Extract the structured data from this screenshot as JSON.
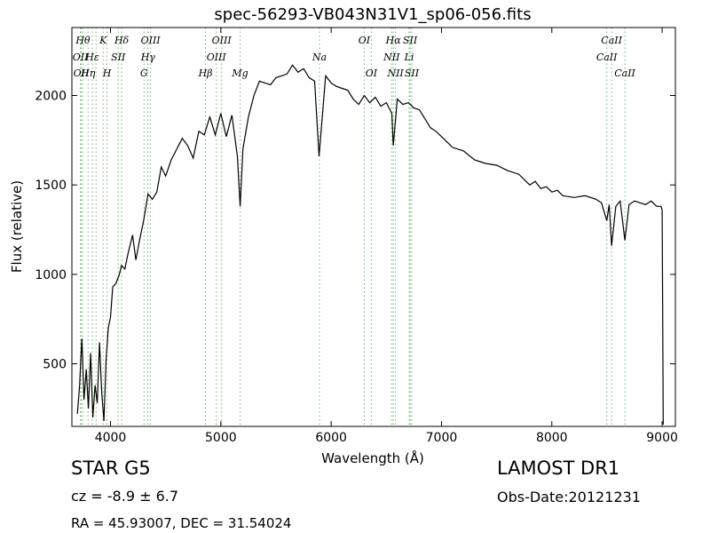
{
  "chart_data": {
    "type": "line",
    "title": "spec-56293-VB043N31V1_sp06-056.fits",
    "xlabel": "Wavelength (Å)",
    "ylabel": "Flux (relative)",
    "xlim": [
      3650,
      9120
    ],
    "ylim": [
      150,
      2380
    ],
    "xticks": [
      4000,
      5000,
      6000,
      7000,
      8000,
      9000
    ],
    "yticks": [
      500,
      1000,
      1500,
      2000
    ],
    "line_color": "#000000",
    "marker_color": "#66bb66",
    "grid": false,
    "legend": "none",
    "series": [
      {
        "x": [
          3700,
          3720,
          3740,
          3760,
          3780,
          3800,
          3820,
          3840,
          3860,
          3880,
          3900,
          3920,
          3940,
          3960,
          3980,
          4000,
          4020,
          4050,
          4080,
          4100,
          4130,
          4160,
          4200,
          4230,
          4260,
          4300,
          4340,
          4380,
          4420,
          4460,
          4500,
          4550,
          4600,
          4650,
          4700,
          4750,
          4800,
          4850,
          4900,
          4950,
          5000,
          5050,
          5100,
          5150,
          5175,
          5200,
          5250,
          5300,
          5350,
          5400,
          5450,
          5500,
          5550,
          5600,
          5650,
          5700,
          5750,
          5800,
          5850,
          5890,
          5950,
          6000,
          6050,
          6100,
          6150,
          6200,
          6250,
          6300,
          6350,
          6400,
          6450,
          6500,
          6550,
          6563,
          6600,
          6650,
          6700,
          6750,
          6800,
          6850,
          6900,
          6950,
          7000,
          7100,
          7200,
          7300,
          7400,
          7500,
          7600,
          7700,
          7800,
          7850,
          7900,
          7950,
          8000,
          8050,
          8100,
          8200,
          8300,
          8400,
          8450,
          8498,
          8520,
          8542,
          8580,
          8620,
          8662,
          8700,
          8750,
          8800,
          8850,
          8900,
          8950,
          8990,
          9000,
          9010
        ],
        "values": [
          220,
          380,
          640,
          300,
          470,
          250,
          560,
          200,
          380,
          280,
          620,
          340,
          180,
          520,
          700,
          760,
          930,
          950,
          1000,
          1050,
          1030,
          1120,
          1220,
          1080,
          1180,
          1300,
          1450,
          1420,
          1460,
          1600,
          1550,
          1640,
          1700,
          1760,
          1720,
          1650,
          1800,
          1780,
          1880,
          1780,
          1900,
          1770,
          1890,
          1660,
          1380,
          1700,
          1880,
          2000,
          2080,
          2070,
          2060,
          2100,
          2110,
          2120,
          2170,
          2130,
          2150,
          2100,
          2080,
          1660,
          2110,
          2070,
          2050,
          2040,
          2030,
          1980,
          1950,
          2000,
          1960,
          1990,
          1940,
          1960,
          1900,
          1720,
          1980,
          1950,
          1960,
          1930,
          1920,
          1870,
          1820,
          1800,
          1770,
          1710,
          1690,
          1640,
          1620,
          1610,
          1580,
          1560,
          1500,
          1520,
          1480,
          1490,
          1460,
          1470,
          1440,
          1430,
          1440,
          1420,
          1400,
          1300,
          1390,
          1160,
          1380,
          1410,
          1190,
          1390,
          1410,
          1400,
          1390,
          1410,
          1380,
          1380,
          1360,
          160
        ]
      }
    ],
    "lines": [
      {
        "x": 3727,
        "label": "OII",
        "row": 2
      },
      {
        "x": 3734,
        "label": "OII",
        "row": 3
      },
      {
        "x": 3750,
        "label": "Hθ",
        "row": 1
      },
      {
        "x": 3797,
        "label": "Hη",
        "row": 3
      },
      {
        "x": 3835,
        "label": "Hε",
        "row": 2
      },
      {
        "x": 3869,
        "label": "",
        "row": 0
      },
      {
        "x": 3933,
        "label": "K",
        "row": 1
      },
      {
        "x": 3968,
        "label": "H",
        "row": 3
      },
      {
        "x": 4070,
        "label": "SII",
        "row": 2
      },
      {
        "x": 4101,
        "label": "Hδ",
        "row": 1
      },
      {
        "x": 4304,
        "label": "G",
        "row": 3
      },
      {
        "x": 4340,
        "label": "Hγ",
        "row": 2
      },
      {
        "x": 4363,
        "label": "OIII",
        "row": 1
      },
      {
        "x": 4861,
        "label": "Hβ",
        "row": 3
      },
      {
        "x": 4959,
        "label": "OIII",
        "row": 2
      },
      {
        "x": 5007,
        "label": "OIII",
        "row": 1
      },
      {
        "x": 5175,
        "label": "Mg",
        "row": 3
      },
      {
        "x": 5894,
        "label": "Na",
        "row": 2
      },
      {
        "x": 6300,
        "label": "OI",
        "row": 1
      },
      {
        "x": 6364,
        "label": "OI",
        "row": 3
      },
      {
        "x": 6548,
        "label": "NII",
        "row": 2
      },
      {
        "x": 6563,
        "label": "Hα",
        "row": 1
      },
      {
        "x": 6583,
        "label": "NII",
        "row": 3
      },
      {
        "x": 6707,
        "label": "Li",
        "row": 2
      },
      {
        "x": 6716,
        "label": "SII",
        "row": 1
      },
      {
        "x": 6731,
        "label": "SII",
        "row": 3
      },
      {
        "x": 8498,
        "label": "CaII",
        "row": 2
      },
      {
        "x": 8542,
        "label": "CaII",
        "row": 1
      },
      {
        "x": 8662,
        "label": "CaII",
        "row": 3
      }
    ]
  },
  "info": {
    "object_class": "STAR   G5",
    "survey": "LAMOST DR1",
    "redshift": "cz = -8.9  ± 6.7",
    "obs_date": "Obs-Date:20121231",
    "coordinates": "RA = 45.93007, DEC = 31.54024"
  }
}
